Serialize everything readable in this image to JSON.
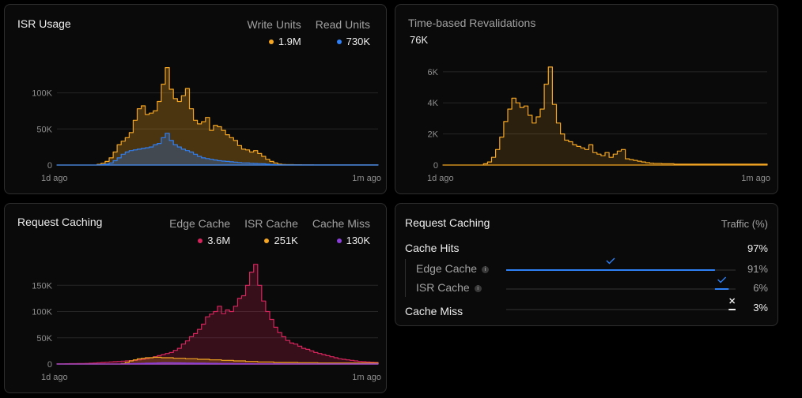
{
  "isr_usage": {
    "title": "ISR Usage",
    "legend": [
      {
        "label": "Write Units",
        "value": "1.9M",
        "color": "#f5a623"
      },
      {
        "label": "Read Units",
        "value": "730K",
        "color": "#2f7ff5"
      }
    ]
  },
  "revalidations": {
    "title": "Time-based Revalidations",
    "total": "76K"
  },
  "request_caching_chart": {
    "title": "Request Caching",
    "legend": [
      {
        "label": "Edge Cache",
        "value": "3.6M",
        "color": "#d6245d"
      },
      {
        "label": "ISR Cache",
        "value": "251K",
        "color": "#f5a623"
      },
      {
        "label": "Cache Miss",
        "value": "130K",
        "color": "#8b3fd9"
      }
    ]
  },
  "request_caching_table": {
    "title": "Request Caching",
    "column_header": "Traffic (%)",
    "rows": [
      {
        "label": "Cache Hits",
        "value": "97%"
      },
      {
        "label": "Edge Cache",
        "value": "91%",
        "fraction": 0.91,
        "status_icon": "check-icon"
      },
      {
        "label": "ISR Cache",
        "value": "6%",
        "fraction": 0.06,
        "status_icon": "check-icon"
      },
      {
        "label": "Cache Miss",
        "value": "3%",
        "fraction": 0.03,
        "status_icon": "x-icon"
      }
    ],
    "info_icon": "info-icon"
  },
  "chart_data": [
    {
      "type": "area",
      "ylim": [
        0,
        140000
      ],
      "yticks": [
        "0",
        "50K",
        "100K"
      ],
      "ytick_values": [
        0,
        50000,
        100000
      ],
      "xticks": [
        "1d ago",
        "1m ago"
      ],
      "series": [
        {
          "name": "Write Units",
          "color": "#f5a623",
          "values": [
            0,
            0,
            0,
            0,
            0,
            0,
            0,
            0,
            0,
            0,
            1000,
            2500,
            5000,
            10000,
            18000,
            28000,
            33000,
            38000,
            45000,
            62000,
            78000,
            82000,
            70000,
            72000,
            75000,
            88000,
            112000,
            135000,
            105000,
            92000,
            88000,
            96000,
            106000,
            78000,
            62000,
            57000,
            60000,
            66000,
            48000,
            55000,
            53000,
            48000,
            42000,
            38000,
            34000,
            27000,
            22000,
            21000,
            18000,
            20000,
            16000,
            12000,
            8000,
            5000,
            3000,
            1200,
            800,
            600,
            500,
            400,
            400,
            300,
            300,
            300,
            200,
            200,
            200,
            200,
            200,
            200,
            200,
            200,
            200,
            200,
            200,
            200,
            200,
            200,
            200,
            200
          ]
        },
        {
          "name": "Read Units",
          "color": "#2f7ff5",
          "values": [
            0,
            0,
            0,
            0,
            0,
            0,
            0,
            0,
            0,
            0,
            200,
            500,
            1200,
            3000,
            6000,
            10000,
            15000,
            18000,
            20000,
            21000,
            22000,
            23000,
            24000,
            25000,
            28000,
            30000,
            38000,
            44000,
            34000,
            28000,
            25000,
            22000,
            20000,
            18000,
            15000,
            12000,
            10000,
            9000,
            8000,
            7000,
            6000,
            5500,
            5000,
            4500,
            4000,
            3500,
            3000,
            2800,
            2500,
            2200,
            2000,
            1800,
            1200,
            800,
            500,
            300,
            200,
            150,
            120,
            100,
            100,
            100,
            100,
            100,
            100,
            100,
            100,
            100,
            100,
            100,
            100,
            100,
            100,
            100,
            100,
            100,
            100,
            100,
            100,
            100
          ]
        }
      ]
    },
    {
      "type": "area",
      "ylim": [
        0,
        6500
      ],
      "yticks": [
        "0",
        "2K",
        "4K",
        "6K"
      ],
      "ytick_values": [
        0,
        2000,
        4000,
        6000
      ],
      "xticks": [
        "1d ago",
        "1m ago"
      ],
      "series": [
        {
          "name": "Time-based Revalidations",
          "color": "#f5a623",
          "values": [
            0,
            0,
            0,
            0,
            0,
            0,
            0,
            0,
            0,
            0,
            80,
            200,
            500,
            1000,
            1800,
            2800,
            3600,
            4300,
            4000,
            3700,
            3800,
            3200,
            2700,
            3100,
            3600,
            5200,
            6300,
            3900,
            2700,
            2000,
            1600,
            1500,
            1300,
            1200,
            1100,
            1000,
            1300,
            800,
            700,
            600,
            800,
            500,
            700,
            900,
            1000,
            400,
            350,
            300,
            250,
            200,
            150,
            120,
            100,
            100,
            80,
            80,
            80,
            60,
            60,
            60,
            60,
            60,
            60,
            60,
            60,
            60,
            60,
            60,
            60,
            60,
            60,
            60,
            60,
            60,
            60,
            60,
            60,
            60,
            60,
            60
          ]
        }
      ]
    },
    {
      "type": "area",
      "ylim": [
        0,
        200000
      ],
      "yticks": [
        "0",
        "50K",
        "100K",
        "150K"
      ],
      "ytick_values": [
        0,
        50000,
        100000,
        150000
      ],
      "xticks": [
        "1d ago",
        "1m ago"
      ],
      "series": [
        {
          "name": "Edge Cache",
          "color": "#d6245d",
          "values": [
            500,
            500,
            600,
            700,
            800,
            900,
            1000,
            1200,
            1500,
            2000,
            2500,
            3000,
            3500,
            4000,
            4500,
            5000,
            5500,
            6000,
            6500,
            7000,
            8000,
            9000,
            10000,
            12000,
            14000,
            16000,
            18000,
            20000,
            22000,
            26000,
            30000,
            38000,
            44000,
            52000,
            58000,
            66000,
            76000,
            90000,
            95000,
            100000,
            110000,
            96000,
            103000,
            100000,
            110000,
            125000,
            130000,
            150000,
            175000,
            190000,
            150000,
            120000,
            100000,
            85000,
            70000,
            60000,
            52000,
            45000,
            40000,
            38000,
            34000,
            30000,
            28000,
            25000,
            22000,
            20000,
            18000,
            16000,
            14000,
            12000,
            10000,
            9000,
            8000,
            7000,
            6000,
            5000,
            4500,
            4000,
            3500,
            3000
          ]
        },
        {
          "name": "ISR Cache",
          "color": "#f5a623",
          "values": [
            0,
            0,
            0,
            0,
            0,
            0,
            0,
            0,
            0,
            0,
            0,
            0,
            0,
            0,
            0,
            0,
            1000,
            3000,
            6000,
            8000,
            10000,
            11000,
            12000,
            12000,
            13000,
            13000,
            12000,
            12000,
            12000,
            11000,
            11000,
            11000,
            10000,
            10000,
            10000,
            9000,
            9000,
            9000,
            8000,
            8000,
            8000,
            7000,
            7000,
            7000,
            6000,
            6000,
            6000,
            5000,
            5000,
            5000,
            4000,
            4000,
            4000,
            4000,
            3000,
            3000,
            3000,
            3000,
            3000,
            3000,
            2500,
            2500,
            2500,
            2500,
            2500,
            2000,
            2000,
            2000,
            2000,
            2000,
            2000,
            2000,
            2000,
            2000,
            2000,
            2000,
            2000,
            2000,
            2000,
            2000
          ]
        },
        {
          "name": "Cache Miss",
          "color": "#8b3fd9",
          "values": [
            0,
            0,
            0,
            0,
            0,
            0,
            0,
            0,
            0,
            0,
            0,
            0,
            0,
            0,
            0,
            0,
            200,
            500,
            800,
            1000,
            1200,
            1400,
            1600,
            1800,
            2000,
            2200,
            2400,
            2400,
            2400,
            2300,
            2200,
            2100,
            2000,
            1900,
            1800,
            1700,
            1600,
            1500,
            1400,
            1300,
            1200,
            1100,
            1000,
            900,
            800,
            700,
            700,
            600,
            600,
            500,
            500,
            500,
            400,
            400,
            400,
            400,
            300,
            300,
            300,
            300,
            300,
            300,
            300,
            300,
            300,
            300,
            300,
            300,
            300,
            300,
            300,
            300,
            300,
            300,
            300,
            300,
            300,
            300,
            300,
            300
          ]
        }
      ]
    }
  ]
}
